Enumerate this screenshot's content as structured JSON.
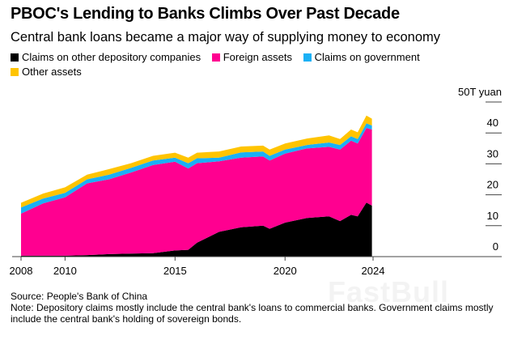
{
  "chart_data": {
    "type": "area",
    "stacked": true,
    "title": "PBOC's Lending to Banks Climbs Over Past Decade",
    "subtitle": "Central bank loans became a major way of supplying money to economy",
    "unit_label": "50T yuan",
    "xlabel": "",
    "ylabel": "",
    "ylim": [
      0,
      50
    ],
    "xlim": [
      2008,
      2024
    ],
    "y_ticks": [
      "0",
      "10",
      "20",
      "30",
      "40"
    ],
    "x_ticks": [
      {
        "value": 2008,
        "label": "2008"
      },
      {
        "value": 2010,
        "label": "2010"
      },
      {
        "value": 2015,
        "label": "2015"
      },
      {
        "value": 2020,
        "label": "2020"
      },
      {
        "value": 2024,
        "label": "2024"
      }
    ],
    "legend_position": "top-left",
    "grid": false,
    "x": [
      2008,
      2009,
      2010,
      2011,
      2012,
      2013,
      2014,
      2015,
      2015.6,
      2016,
      2017,
      2018,
      2019,
      2019.3,
      2020,
      2021,
      2022,
      2022.5,
      2023,
      2023.3,
      2023.7,
      2023.95
    ],
    "series": [
      {
        "name": "Claims on other depository companies",
        "color": "#000000",
        "values": [
          0.3,
          0.3,
          0.3,
          0.5,
          0.8,
          1.0,
          1.1,
          2.0,
          2.2,
          4.5,
          8.0,
          9.5,
          10.0,
          9.0,
          11.0,
          12.5,
          13.0,
          11.5,
          13.5,
          13.0,
          17.5,
          16.5
        ]
      },
      {
        "name": "Foreign assets",
        "color": "#ff0090",
        "values": [
          13.6,
          16.9,
          18.9,
          23.2,
          24.2,
          26.2,
          28.5,
          28.7,
          26.3,
          25.7,
          22.8,
          22.5,
          22.4,
          22.1,
          22.3,
          22.5,
          22.5,
          23.1,
          24.0,
          23.6,
          24.1,
          24.6
        ]
      },
      {
        "name": "Claims on government",
        "color": "#1ab0f5",
        "values": [
          2.0,
          1.6,
          1.4,
          1.3,
          1.5,
          1.5,
          1.5,
          1.3,
          1.7,
          1.6,
          1.2,
          1.7,
          1.6,
          1.5,
          1.3,
          1.1,
          1.4,
          1.5,
          1.4,
          1.4,
          1.5,
          1.3
        ]
      },
      {
        "name": "Other assets",
        "color": "#ffc400",
        "values": [
          1.5,
          1.6,
          1.8,
          1.5,
          1.8,
          1.5,
          1.5,
          1.6,
          1.8,
          1.8,
          2.0,
          1.9,
          1.9,
          2.0,
          2.0,
          2.1,
          2.3,
          1.9,
          2.2,
          2.2,
          2.5,
          2.2
        ]
      }
    ]
  },
  "footer": {
    "source": "Source: People's Bank of China",
    "note": "Note: Depository claims mostly include the central bank's loans to commercial banks. Government claims mostly include the central bank's holding of sovereign bonds."
  },
  "watermark": "FastBull"
}
